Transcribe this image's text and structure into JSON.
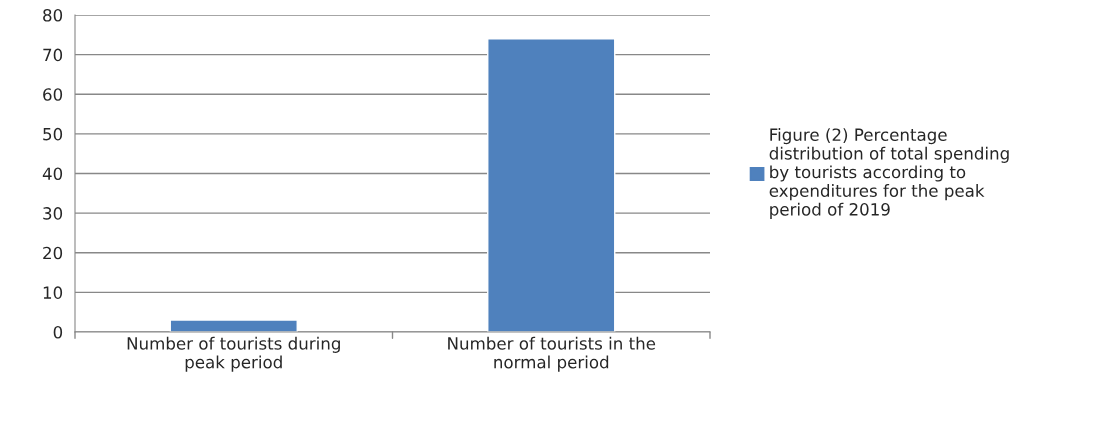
{
  "chart_data": {
    "type": "bar",
    "categories": [
      "Number of tourists during peak period",
      "Number of tourists in the normal period"
    ],
    "series": [
      {
        "name": "Figure (2) Percentage distribution of total spending by tourists according to expenditures for the peak period of 2019",
        "color": "#4f81bd",
        "values": [
          3,
          74
        ]
      }
    ],
    "ylim": [
      0,
      80
    ],
    "yticks": [
      0,
      10,
      20,
      30,
      40,
      50,
      60,
      70,
      80
    ],
    "grid": "y",
    "legend": "right"
  }
}
